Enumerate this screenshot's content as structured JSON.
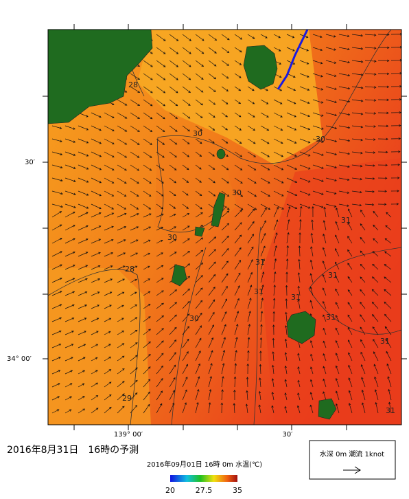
{
  "map": {
    "frame_labels": {
      "lat_30": "30′",
      "lat_34": "34° 00′",
      "lon_139": "139° 00′",
      "lon_30": "30′"
    },
    "contour_labels": [
      "28",
      "30",
      "30",
      "30",
      "30",
      "31",
      "31",
      "31",
      "28",
      "31",
      "31",
      "30",
      "31",
      "31",
      "29",
      "31"
    ],
    "title": "2016年8月31日　16時の予測",
    "colorbar": {
      "caption": "2016年09月01日 16時 0m 水温(℃)",
      "ticks": [
        20,
        27.5,
        35
      ]
    },
    "legend": {
      "label": "水深 0m 潮流 1knot"
    }
  }
}
